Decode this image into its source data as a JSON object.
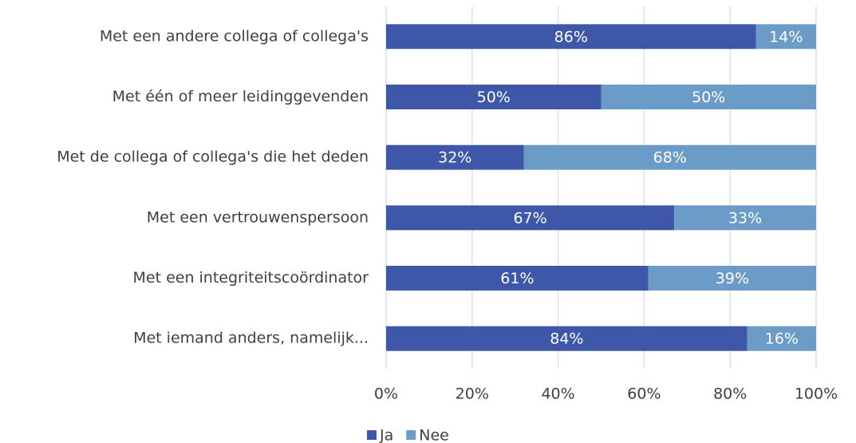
{
  "chart_data": {
    "type": "bar",
    "orientation": "horizontal",
    "stacked": true,
    "categories": [
      "Met een andere collega of collega's",
      "Met één of meer leidinggevenden",
      "Met de collega of collega's die het deden",
      "Met een vertrouwenspersoon",
      "Met een integriteitscoördinator",
      "Met iemand anders, namelijk..."
    ],
    "series": [
      {
        "name": "Ja",
        "color": "#3f57a9",
        "values": [
          86,
          50,
          32,
          67,
          61,
          84
        ],
        "value_labels": [
          "86%",
          "50%",
          "32%",
          "67%",
          "61%",
          "84%"
        ]
      },
      {
        "name": "Nee",
        "color": "#6b9cc7",
        "values": [
          14,
          50,
          68,
          33,
          39,
          16
        ],
        "value_labels": [
          "14%",
          "50%",
          "68%",
          "33%",
          "39%",
          "16%"
        ]
      }
    ],
    "xlim": [
      0,
      100
    ],
    "xticks": [
      {
        "value": 0,
        "label": "0%"
      },
      {
        "value": 20,
        "label": "20%"
      },
      {
        "value": 40,
        "label": "40%"
      },
      {
        "value": 60,
        "label": "60%"
      },
      {
        "value": 80,
        "label": "80%"
      },
      {
        "value": 100,
        "label": "100%"
      }
    ],
    "grid": true,
    "legend": "bottom"
  }
}
